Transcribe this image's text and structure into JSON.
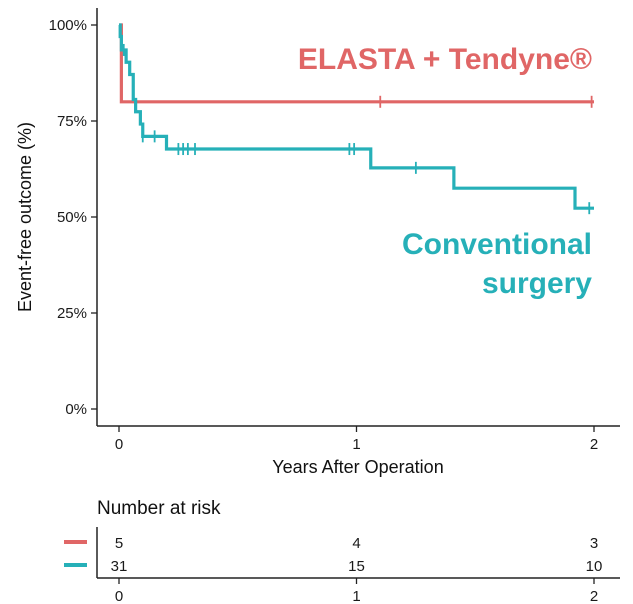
{
  "chart_data": {
    "type": "line",
    "subtype": "kaplan-meier step curve",
    "xlabel": "Years After Operation",
    "ylabel": "Event-free outcome (%)",
    "xlim": [
      0,
      2
    ],
    "ylim": [
      0,
      100
    ],
    "x_ticks": [
      0,
      1,
      2
    ],
    "x_tick_labels": [
      "0",
      "1",
      "2"
    ],
    "y_ticks": [
      0,
      25,
      50,
      75,
      100
    ],
    "y_tick_labels": [
      "0%",
      "25%",
      "50%",
      "75%",
      "100%"
    ],
    "grid": false,
    "series": [
      {
        "name": "ELASTA + Tendyne®",
        "color": "#E06666",
        "steps": [
          [
            0,
            100
          ],
          [
            0.01,
            80
          ],
          [
            2.0,
            80
          ]
        ],
        "censor_x": [
          1.1,
          1.99
        ]
      },
      {
        "name": "Conventional surgery",
        "color": "#26B0B8",
        "steps": [
          [
            0,
            100
          ],
          [
            0.005,
            97
          ],
          [
            0.01,
            93.5
          ],
          [
            0.03,
            90.3
          ],
          [
            0.045,
            87.1
          ],
          [
            0.06,
            80.6
          ],
          [
            0.07,
            77.4
          ],
          [
            0.09,
            74.2
          ],
          [
            0.1,
            71.0
          ],
          [
            0.2,
            67.7
          ],
          [
            1.06,
            62.8
          ],
          [
            1.41,
            57.5
          ],
          [
            1.92,
            52.3
          ],
          [
            2.0,
            52.3
          ]
        ],
        "censor_x": [
          0.02,
          0.1,
          0.15,
          0.25,
          0.27,
          0.29,
          0.32,
          0.97,
          0.99,
          1.25,
          1.98
        ]
      }
    ],
    "annotations": [
      {
        "text": "ELASTA + Tendyne®",
        "series": "ELASTA + Tendyne®"
      },
      {
        "text": "Conventional",
        "series": "Conventional surgery"
      },
      {
        "text": "surgery",
        "series": "Conventional surgery"
      }
    ],
    "risk_table": {
      "title": "Number at risk",
      "times": [
        "0",
        "1",
        "2"
      ],
      "rows": [
        {
          "series": "ELASTA + Tendyne®",
          "color": "#E06666",
          "counts": [
            "5",
            "4",
            "3"
          ]
        },
        {
          "series": "Conventional surgery",
          "color": "#26B0B8",
          "counts": [
            "31",
            "15",
            "10"
          ]
        }
      ]
    }
  }
}
